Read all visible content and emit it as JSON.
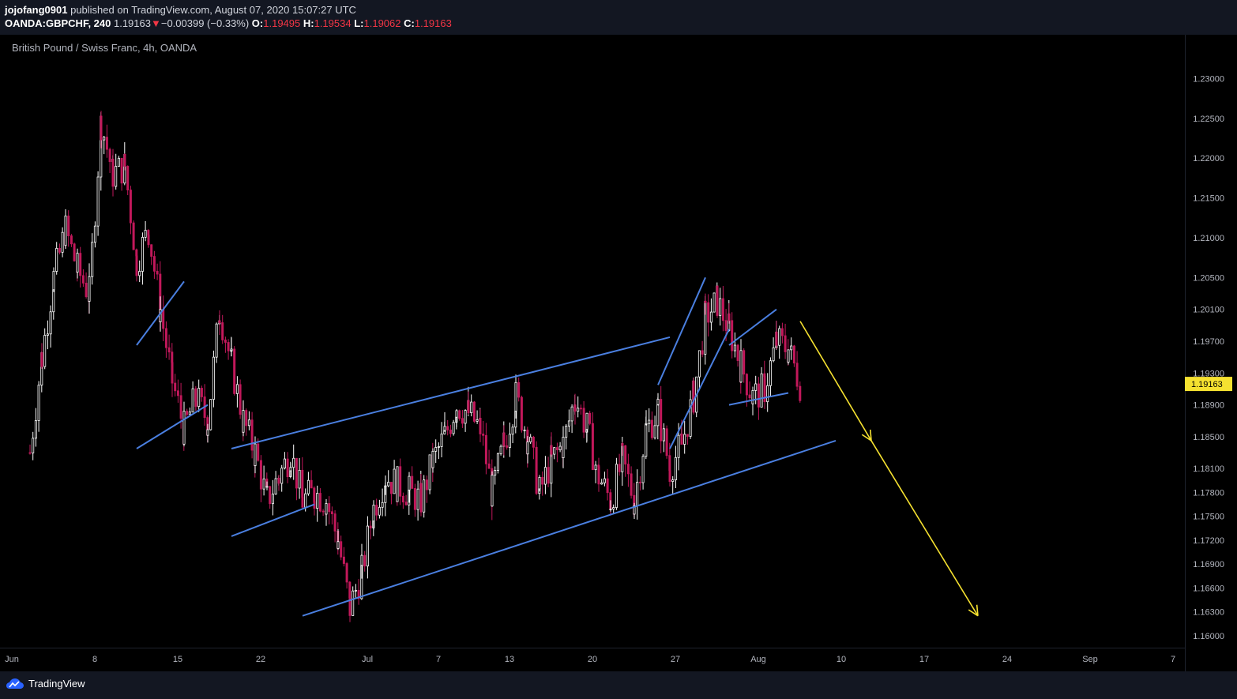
{
  "header": {
    "author": "jojofang0901",
    "published_text": "published on TradingView.com, August 07, 2020 15:07:27 UTC",
    "symbol": "OANDA:GBPCHF, 240",
    "last": "1.19163",
    "change": "−0.00399 (−0.33%)",
    "open_label": "O:",
    "open": "1.19495",
    "high_label": "H:",
    "high": "1.19534",
    "low_label": "L:",
    "low": "1.19062",
    "close_label": "C:",
    "close": "1.19163"
  },
  "chart_subtitle": "British Pound / Swiss Franc, 4h, OANDA",
  "footer": {
    "brand": "TradingView"
  },
  "colors": {
    "up": "#ffffff",
    "down": "#c2185b",
    "trendline": "#4a7fe0",
    "arrow": "#f5e130",
    "price_tag": "#f5e130"
  },
  "chart_data": {
    "type": "candlestick",
    "ylim": [
      1.1585,
      1.2345
    ],
    "price_axis": [
      "1.23000",
      "1.22500",
      "1.22000",
      "1.21500",
      "1.21000",
      "1.20500",
      "1.20100",
      "1.19700",
      "1.19300",
      "1.18900",
      "1.18500",
      "1.18100",
      "1.17800",
      "1.17500",
      "1.17200",
      "1.16900",
      "1.16600",
      "1.16300",
      "1.16000"
    ],
    "time_axis": [
      "Jun",
      "8",
      "15",
      "22",
      "Jul",
      "7",
      "13",
      "20",
      "27",
      "Aug",
      "10",
      "17",
      "24",
      "Sep",
      "7"
    ],
    "current_price": "1.19163",
    "close_path": [
      {
        "date": "2020-06-03",
        "price": 1.183
      },
      {
        "date": "2020-06-04",
        "price": 1.195
      },
      {
        "date": "2020-06-05",
        "price": 1.205
      },
      {
        "date": "2020-06-06",
        "price": 1.211
      },
      {
        "date": "2020-06-07",
        "price": 1.206
      },
      {
        "date": "2020-06-08",
        "price": 1.203
      },
      {
        "date": "2020-06-09",
        "price": 1.2245
      },
      {
        "date": "2020-06-10",
        "price": 1.218
      },
      {
        "date": "2020-06-11",
        "price": 1.219
      },
      {
        "date": "2020-06-12",
        "price": 1.207
      },
      {
        "date": "2020-06-13",
        "price": 1.211
      },
      {
        "date": "2020-06-14",
        "price": 1.201
      },
      {
        "date": "2020-06-15",
        "price": 1.192
      },
      {
        "date": "2020-06-16",
        "price": 1.186
      },
      {
        "date": "2020-06-17",
        "price": 1.19
      },
      {
        "date": "2020-06-18",
        "price": 1.187
      },
      {
        "date": "2020-06-19",
        "price": 1.201
      },
      {
        "date": "2020-06-20",
        "price": 1.194
      },
      {
        "date": "2020-06-21",
        "price": 1.187
      },
      {
        "date": "2020-06-22",
        "price": 1.183
      },
      {
        "date": "2020-06-23",
        "price": 1.177
      },
      {
        "date": "2020-06-24",
        "price": 1.18
      },
      {
        "date": "2020-06-25",
        "price": 1.183
      },
      {
        "date": "2020-06-26",
        "price": 1.177
      },
      {
        "date": "2020-06-27",
        "price": 1.178
      },
      {
        "date": "2020-06-28",
        "price": 1.177
      },
      {
        "date": "2020-06-29",
        "price": 1.172
      },
      {
        "date": "2020-06-30",
        "price": 1.1635
      },
      {
        "date": "2020-07-01",
        "price": 1.168
      },
      {
        "date": "2020-07-02",
        "price": 1.176
      },
      {
        "date": "2020-07-03",
        "price": 1.18
      },
      {
        "date": "2020-07-04",
        "price": 1.179
      },
      {
        "date": "2020-07-05",
        "price": 1.178
      },
      {
        "date": "2020-07-06",
        "price": 1.177
      },
      {
        "date": "2020-07-07",
        "price": 1.182
      },
      {
        "date": "2020-07-08",
        "price": 1.185
      },
      {
        "date": "2020-07-09",
        "price": 1.189
      },
      {
        "date": "2020-07-10",
        "price": 1.188
      },
      {
        "date": "2020-07-11",
        "price": 1.186
      },
      {
        "date": "2020-07-12",
        "price": 1.178
      },
      {
        "date": "2020-07-13",
        "price": 1.184
      },
      {
        "date": "2020-07-14",
        "price": 1.19
      },
      {
        "date": "2020-07-15",
        "price": 1.185
      },
      {
        "date": "2020-07-16",
        "price": 1.178
      },
      {
        "date": "2020-07-17",
        "price": 1.182
      },
      {
        "date": "2020-07-18",
        "price": 1.184
      },
      {
        "date": "2020-07-19",
        "price": 1.19
      },
      {
        "date": "2020-07-20",
        "price": 1.186
      },
      {
        "date": "2020-07-21",
        "price": 1.18
      },
      {
        "date": "2020-07-22",
        "price": 1.177
      },
      {
        "date": "2020-07-23",
        "price": 1.182
      },
      {
        "date": "2020-07-24",
        "price": 1.177
      },
      {
        "date": "2020-07-25",
        "price": 1.186
      },
      {
        "date": "2020-07-26",
        "price": 1.188
      },
      {
        "date": "2020-07-27",
        "price": 1.181
      },
      {
        "date": "2020-07-28",
        "price": 1.184
      },
      {
        "date": "2020-07-29",
        "price": 1.19
      },
      {
        "date": "2020-07-30",
        "price": 1.2
      },
      {
        "date": "2020-07-31",
        "price": 1.202
      },
      {
        "date": "2020-08-01",
        "price": 1.1985
      },
      {
        "date": "2020-08-02",
        "price": 1.194
      },
      {
        "date": "2020-08-03",
        "price": 1.19
      },
      {
        "date": "2020-08-04",
        "price": 1.191
      },
      {
        "date": "2020-08-05",
        "price": 1.197
      },
      {
        "date": "2020-08-06",
        "price": 1.196
      },
      {
        "date": "2020-08-07",
        "price": 1.19163
      }
    ],
    "trendlines": [
      {
        "from": {
          "date": "2020-06-12",
          "price": 1.1965
        },
        "to": {
          "date": "2020-06-16",
          "price": 1.2045
        }
      },
      {
        "from": {
          "date": "2020-06-12",
          "price": 1.1835
        },
        "to": {
          "date": "2020-06-18",
          "price": 1.189
        }
      },
      {
        "from": {
          "date": "2020-06-20",
          "price": 1.1835
        },
        "to": {
          "date": "2020-07-27",
          "price": 1.1975
        }
      },
      {
        "from": {
          "date": "2020-06-20",
          "price": 1.1725
        },
        "to": {
          "date": "2020-06-27",
          "price": 1.1765
        }
      },
      {
        "from": {
          "date": "2020-06-26",
          "price": 1.1625
        },
        "to": {
          "date": "2020-08-10",
          "price": 1.1845
        }
      },
      {
        "from": {
          "date": "2020-07-26",
          "price": 1.1915
        },
        "to": {
          "date": "2020-07-30",
          "price": 1.205
        }
      },
      {
        "from": {
          "date": "2020-07-27",
          "price": 1.1835
        },
        "to": {
          "date": "2020-08-01",
          "price": 1.1985
        }
      },
      {
        "from": {
          "date": "2020-08-01",
          "price": 1.1965
        },
        "to": {
          "date": "2020-08-05",
          "price": 1.201
        }
      },
      {
        "from": {
          "date": "2020-08-01",
          "price": 1.189
        },
        "to": {
          "date": "2020-08-06",
          "price": 1.1905
        }
      }
    ],
    "projection_arrows": [
      {
        "from": {
          "date": "2020-08-07",
          "price": 1.1995
        },
        "to": {
          "date": "2020-08-13",
          "price": 1.1845
        }
      },
      {
        "from": {
          "date": "2020-08-13",
          "price": 1.1845
        },
        "to": {
          "date": "2020-08-22",
          "price": 1.1625
        }
      }
    ]
  }
}
